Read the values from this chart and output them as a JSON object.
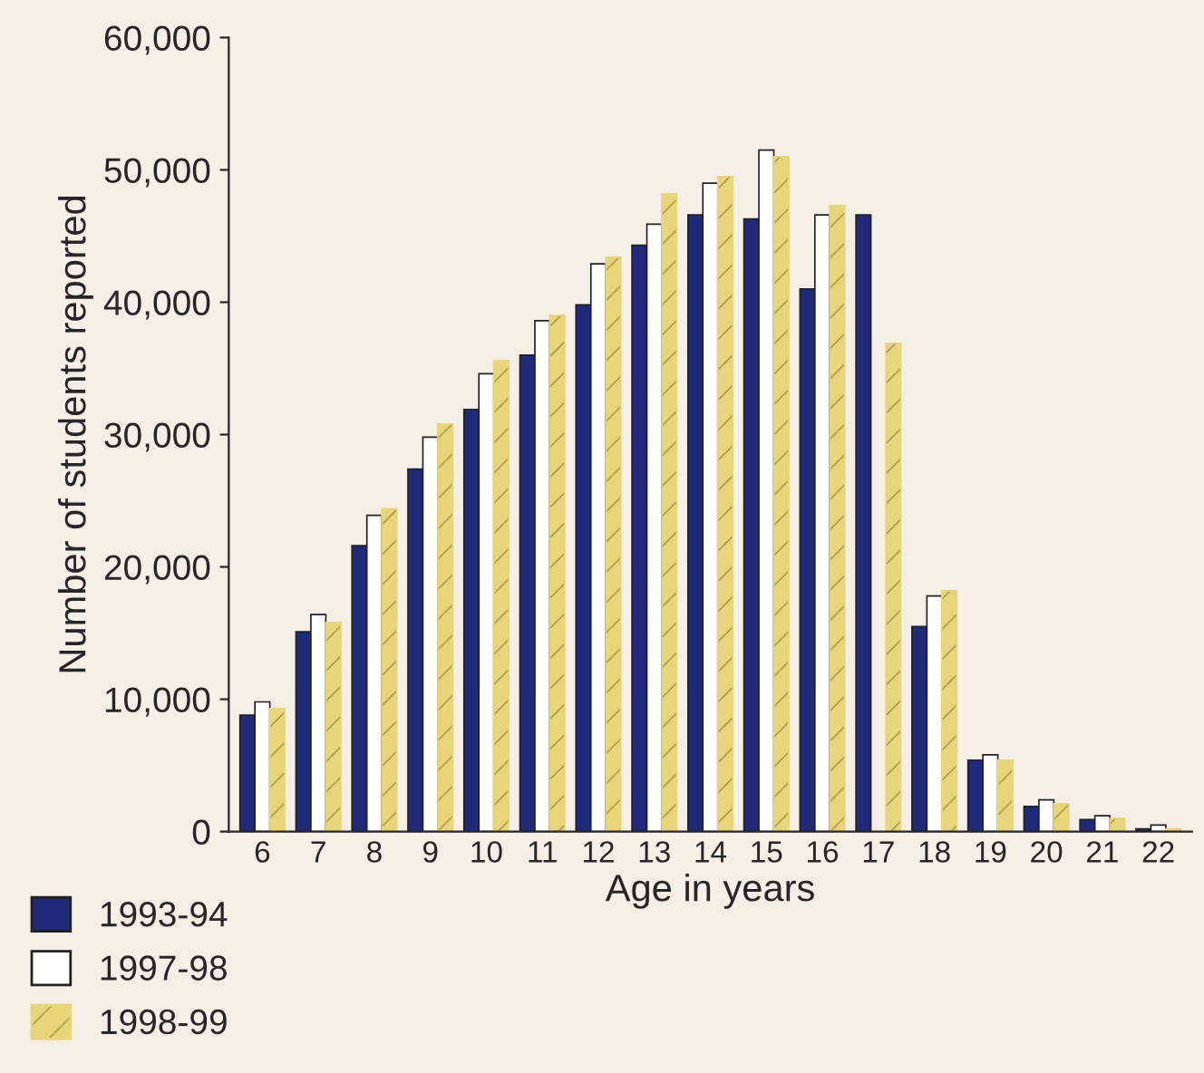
{
  "chart_data": {
    "type": "bar",
    "xlabel": "Age in years",
    "ylabel": "Number of students reported",
    "categories": [
      "6",
      "7",
      "8",
      "9",
      "10",
      "11",
      "12",
      "13",
      "14",
      "15",
      "16",
      "17",
      "18",
      "19",
      "20",
      "21",
      "22"
    ],
    "series": [
      {
        "name": "1993-94",
        "color": "#1f2a7a",
        "values": [
          8800,
          15100,
          21600,
          27400,
          31900,
          36000,
          39800,
          44300,
          46600,
          46300,
          41000,
          46600,
          15500,
          5400,
          1900,
          900,
          200
        ]
      },
      {
        "name": "1997-98",
        "color": "#ffffff",
        "values": [
          9800,
          16400,
          23900,
          29800,
          34600,
          38600,
          42900,
          45900,
          49000,
          51500,
          46600,
          null,
          17800,
          5800,
          2400,
          1200,
          500
        ]
      },
      {
        "name": "1998-99",
        "color": "#e8d57a",
        "values": [
          9300,
          15800,
          24400,
          30800,
          35600,
          39000,
          43400,
          48200,
          49500,
          51000,
          47300,
          36900,
          18200,
          5400,
          2100,
          1000,
          200
        ]
      }
    ],
    "ylim": [
      0,
      60000
    ],
    "yticks": [
      {
        "value": 0,
        "label": "0"
      },
      {
        "value": 10000,
        "label": "10,000"
      },
      {
        "value": 20000,
        "label": "20,000"
      },
      {
        "value": 30000,
        "label": "30,000"
      },
      {
        "value": 40000,
        "label": "40,000"
      },
      {
        "value": 50000,
        "label": "50,000"
      },
      {
        "value": 60000,
        "label": "60,000"
      }
    ],
    "grid": false,
    "legend": "bottom left"
  }
}
